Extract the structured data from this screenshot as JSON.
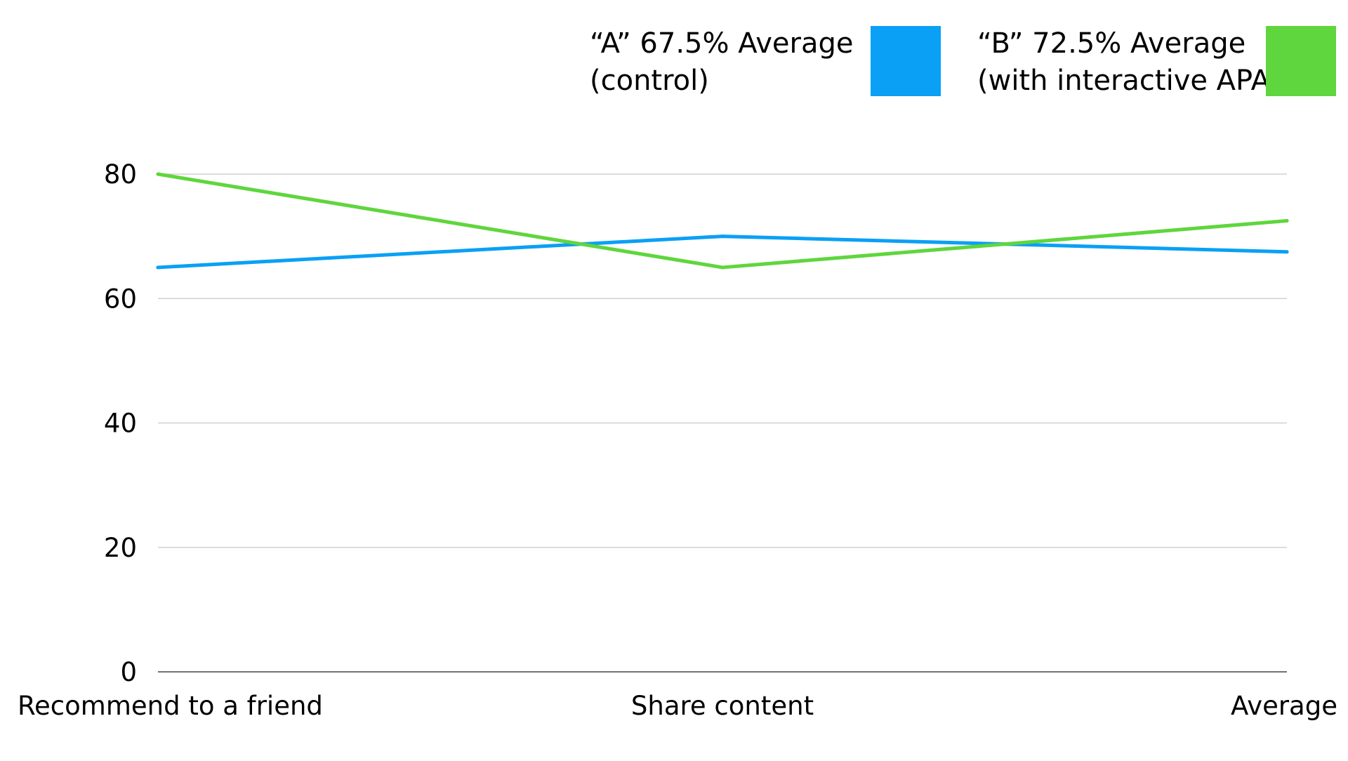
{
  "chart_data": {
    "type": "line",
    "title": "",
    "xlabel": "",
    "ylabel": "",
    "categories": [
      "Recommend to a friend",
      "Share content",
      "Average"
    ],
    "series": [
      {
        "name_lines": [
          "“A” 67.5% Average",
          "(control)"
        ],
        "values": [
          65,
          70,
          67.5
        ],
        "color": "#0aa0f5"
      },
      {
        "name_lines": [
          "“B” 72.5% Average",
          "(with interactive APA)"
        ],
        "values": [
          80,
          65,
          72.5
        ],
        "color": "#5fd63d"
      }
    ],
    "ylim": [
      0,
      80
    ],
    "yticks": [
      "0",
      "20",
      "40",
      "60",
      "80"
    ],
    "ytick_values": [
      0,
      20,
      40,
      60,
      80
    ],
    "grid": true,
    "legend_position": "top-right"
  }
}
